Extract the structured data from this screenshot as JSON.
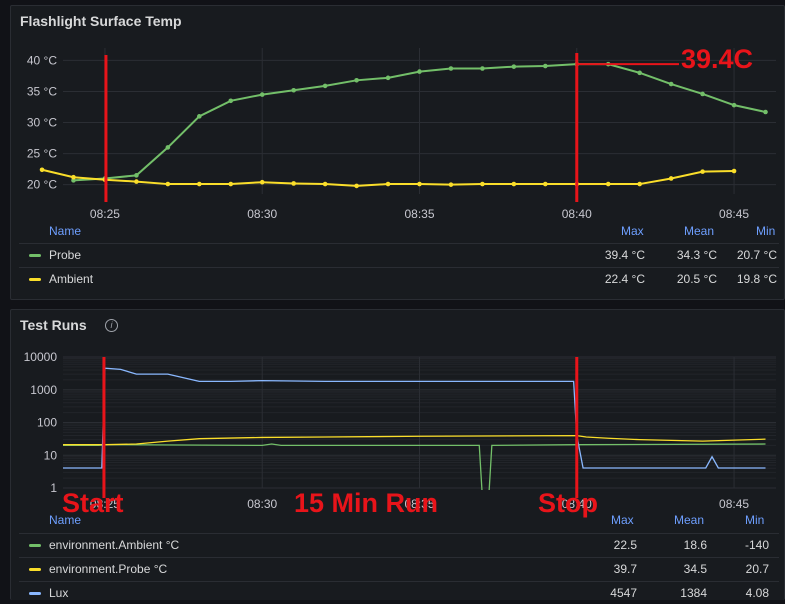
{
  "colors": {
    "probe": "#73bf69",
    "ambient": "#fade2a",
    "lux": "#8ab8ff",
    "marker": "#e8141a",
    "grid": "#2b2e34"
  },
  "panels": {
    "temp": {
      "title": "Flashlight Surface Temp"
    },
    "runs": {
      "title": "Test Runs",
      "info_icon": "info-icon"
    }
  },
  "chart_data": [
    {
      "type": "line",
      "title": "Flashlight Surface Temp",
      "x_ticks": [
        "08:25",
        "08:30",
        "08:35",
        "08:40",
        "08:45"
      ],
      "y_ticks": [
        "40 °C",
        "35 °C",
        "30 °C",
        "25 °C",
        "20 °C"
      ],
      "ylim": [
        18.5,
        42
      ],
      "xlim": [
        "08:23:40",
        "08:46:20"
      ],
      "grid": true,
      "legend_position": "bottom",
      "series": [
        {
          "name": "Probe",
          "color": "#73bf69",
          "x": [
            "08:24",
            "08:25",
            "08:26",
            "08:27",
            "08:28",
            "08:29",
            "08:30",
            "08:31",
            "08:32",
            "08:33",
            "08:34",
            "08:35",
            "08:36",
            "08:37",
            "08:38",
            "08:39",
            "08:40",
            "08:41",
            "08:42",
            "08:43",
            "08:44",
            "08:45",
            "08:46"
          ],
          "y": [
            20.7,
            21,
            21.5,
            26,
            31,
            33.5,
            34.5,
            35.2,
            35.9,
            36.8,
            37.2,
            38.2,
            38.7,
            38.7,
            39,
            39.1,
            39.4,
            39.4,
            38,
            36.2,
            34.6,
            32.8,
            31.7
          ]
        },
        {
          "name": "Ambient",
          "color": "#fade2a",
          "x": [
            "08:23",
            "08:24",
            "08:25",
            "08:26",
            "08:27",
            "08:28",
            "08:29",
            "08:30",
            "08:31",
            "08:32",
            "08:33",
            "08:34",
            "08:35",
            "08:36",
            "08:37",
            "08:38",
            "08:39",
            "08:40",
            "08:41",
            "08:42",
            "08:43",
            "08:44",
            "08:45"
          ],
          "y": [
            22.4,
            21.2,
            20.8,
            20.5,
            20.1,
            20.1,
            20.1,
            20.4,
            20.2,
            20.1,
            19.8,
            20.1,
            20.1,
            20.0,
            20.1,
            20.1,
            20.1,
            20.1,
            20.1,
            20.1,
            21.0,
            22.1,
            22.2
          ]
        }
      ],
      "legend": {
        "headers": [
          "Name",
          "Max",
          "Mean",
          "Min"
        ],
        "rows": [
          {
            "name": "Probe",
            "max": "39.4 °C",
            "mean": "34.3 °C",
            "min": "20.7 °C"
          },
          {
            "name": "Ambient",
            "max": "22.4 °C",
            "mean": "20.5 °C",
            "min": "19.8 °C"
          }
        ]
      }
    },
    {
      "type": "line",
      "title": "Test Runs",
      "log_scale": true,
      "x_ticks": [
        "08:25",
        "08:30",
        "08:35",
        "08:40",
        "08:45"
      ],
      "y_ticks": [
        "10000",
        "1000",
        "100",
        "10",
        "1"
      ],
      "ylim": [
        1,
        10000
      ],
      "grid": true,
      "legend_position": "bottom",
      "series": [
        {
          "name": "environment.Ambient °C",
          "color": "#73bf69",
          "x": [
            "08:23",
            "08:24.8",
            "08:25.1",
            "08:30",
            "08:30.3",
            "08:30.6",
            "08:36.9",
            "08:37.0",
            "08:37.2",
            "08:37.3",
            "08:40",
            "08:46"
          ],
          "y": [
            20,
            20,
            21,
            20,
            22,
            20,
            20,
            0.5,
            0.5,
            20,
            21,
            22
          ]
        },
        {
          "name": "environment.Probe °C",
          "color": "#fade2a",
          "x": [
            "08:23",
            "08:25",
            "08:26",
            "08:27",
            "08:28",
            "08:30",
            "08:32",
            "08:35",
            "08:40",
            "08:40.3",
            "08:41",
            "08:42",
            "08:44",
            "08:46"
          ],
          "y": [
            21,
            21,
            22,
            27,
            32,
            35,
            36,
            38,
            39.7,
            36,
            33,
            30,
            27,
            31
          ]
        },
        {
          "name": "Lux",
          "color": "#8ab8ff",
          "x": [
            "08:23",
            "08:24.9",
            "08:25.0",
            "08:25.5",
            "08:26",
            "08:27",
            "08:28",
            "08:29",
            "08:30",
            "08:32",
            "08:35",
            "08:38",
            "08:39.9",
            "08:40.0",
            "08:40.2",
            "08:43",
            "08:44.1",
            "08:44.3",
            "08:44.5",
            "08:46"
          ],
          "y": [
            4.08,
            4.08,
            4547,
            4200,
            3000,
            3000,
            1800,
            1800,
            1900,
            1800,
            1800,
            1800,
            1800,
            40,
            4.08,
            4.08,
            4.08,
            9,
            4.08,
            4.08
          ]
        }
      ],
      "legend": {
        "headers": [
          "Name",
          "Max",
          "Mean",
          "Min"
        ],
        "rows": [
          {
            "name": "environment.Ambient °C",
            "max": "22.5",
            "mean": "18.6",
            "min": "-140"
          },
          {
            "name": "environment.Probe °C",
            "max": "39.7",
            "mean": "34.5",
            "min": "20.7"
          },
          {
            "name": "Lux",
            "max": "4547",
            "mean": "1384",
            "min": "4.08"
          }
        ]
      }
    }
  ],
  "annotations": {
    "max_label": "39.4C",
    "start_label": "Start",
    "run_label": "15 Min Run",
    "stop_label": "Stop"
  }
}
